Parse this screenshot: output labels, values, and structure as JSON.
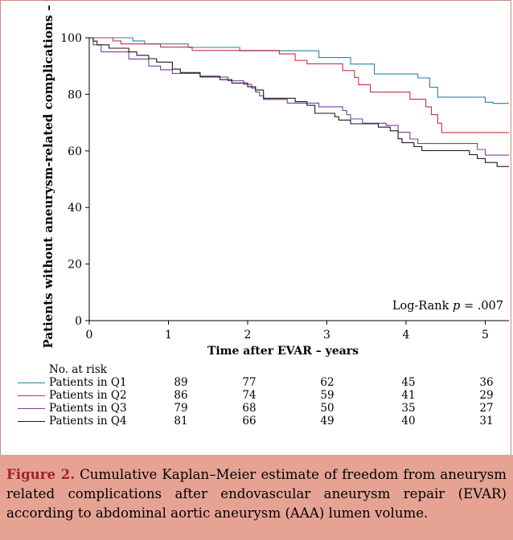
{
  "chart_data": {
    "type": "line",
    "step": true,
    "ylabel": "Patients without aneurysm-related complications – %",
    "xlabel": "Time after EVAR – years",
    "xlim": [
      0,
      5.3
    ],
    "ylim": [
      0,
      100
    ],
    "xticks": [
      0,
      1,
      2,
      3,
      4,
      5
    ],
    "yticks": [
      0,
      20,
      40,
      60,
      80,
      100
    ],
    "annotation": {
      "prefix": "Log-Rank ",
      "p": "p",
      "value": " = .007"
    },
    "series": [
      {
        "name": "Patients in Q1",
        "color": "#2f7fa8",
        "points": [
          [
            0,
            100
          ],
          [
            0.55,
            98.9
          ],
          [
            0.7,
            97.8
          ],
          [
            1.25,
            96.6
          ],
          [
            1.9,
            95.4
          ],
          [
            2.9,
            93
          ],
          [
            3.3,
            90.7
          ],
          [
            3.6,
            87.2
          ],
          [
            4.15,
            85.8
          ],
          [
            4.3,
            82.5
          ],
          [
            4.4,
            79
          ],
          [
            5.0,
            77.2
          ],
          [
            5.1,
            76.8
          ],
          [
            5.3,
            76.8
          ]
        ]
      },
      {
        "name": "Patients in Q2",
        "color": "#c8323e",
        "points": [
          [
            0,
            100
          ],
          [
            0.3,
            98.9
          ],
          [
            0.4,
            97.8
          ],
          [
            0.9,
            96.7
          ],
          [
            1.3,
            95.5
          ],
          [
            2.4,
            94.3
          ],
          [
            2.6,
            92
          ],
          [
            2.75,
            90.8
          ],
          [
            3.2,
            88.4
          ],
          [
            3.35,
            86
          ],
          [
            3.4,
            83.4
          ],
          [
            3.55,
            80.8
          ],
          [
            4.05,
            78.3
          ],
          [
            4.25,
            75.6
          ],
          [
            4.32,
            72.8
          ],
          [
            4.4,
            69.8
          ],
          [
            4.45,
            66.5
          ],
          [
            5.3,
            66.5
          ]
        ]
      },
      {
        "name": "Patients in Q3",
        "color": "#7b3f9e",
        "points": [
          [
            0,
            100
          ],
          [
            0.05,
            97.5
          ],
          [
            0.15,
            95
          ],
          [
            0.5,
            92.5
          ],
          [
            0.75,
            90
          ],
          [
            0.9,
            88.7
          ],
          [
            1.05,
            87.4
          ],
          [
            1.4,
            86.1
          ],
          [
            1.75,
            84.8
          ],
          [
            1.95,
            83.5
          ],
          [
            2.05,
            82.2
          ],
          [
            2.1,
            80.8
          ],
          [
            2.15,
            79.5
          ],
          [
            2.2,
            78.2
          ],
          [
            2.5,
            76.9
          ],
          [
            2.9,
            75.6
          ],
          [
            3.2,
            74.3
          ],
          [
            3.25,
            72.8
          ],
          [
            3.3,
            71.3
          ],
          [
            3.45,
            69.8
          ],
          [
            3.75,
            69
          ],
          [
            3.9,
            66.6
          ],
          [
            4.05,
            64.2
          ],
          [
            4.15,
            62.6
          ],
          [
            4.9,
            60.5
          ],
          [
            5.0,
            58.5
          ],
          [
            5.3,
            58.5
          ]
        ]
      },
      {
        "name": "Patients in Q4",
        "color": "#1a1a1a",
        "points": [
          [
            0,
            100
          ],
          [
            0.05,
            98.8
          ],
          [
            0.1,
            97.5
          ],
          [
            0.25,
            96.3
          ],
          [
            0.5,
            95
          ],
          [
            0.6,
            93.8
          ],
          [
            0.75,
            92.6
          ],
          [
            0.85,
            91.4
          ],
          [
            1.05,
            88.9
          ],
          [
            1.15,
            87.7
          ],
          [
            1.4,
            86.4
          ],
          [
            1.65,
            85.2
          ],
          [
            1.8,
            84
          ],
          [
            2.0,
            82.7
          ],
          [
            2.1,
            81.5
          ],
          [
            2.2,
            78.6
          ],
          [
            2.6,
            77.4
          ],
          [
            2.75,
            76.1
          ],
          [
            2.85,
            73.3
          ],
          [
            3.1,
            72.1
          ],
          [
            3.15,
            70.9
          ],
          [
            3.3,
            69.6
          ],
          [
            3.65,
            68.4
          ],
          [
            3.8,
            67.1
          ],
          [
            3.9,
            64.3
          ],
          [
            3.95,
            62.9
          ],
          [
            4.1,
            61.5
          ],
          [
            4.2,
            60.1
          ],
          [
            4.8,
            58.7
          ],
          [
            4.9,
            57.3
          ],
          [
            5.0,
            55.9
          ],
          [
            5.15,
            54.5
          ],
          [
            5.3,
            54.5
          ]
        ]
      }
    ]
  },
  "at_risk": {
    "header": "No. at risk",
    "rows": [
      {
        "name": "Patients in Q1",
        "color": "#2f7fa8",
        "counts": [
          "89",
          "77",
          "62",
          "45",
          "36"
        ]
      },
      {
        "name": "Patients in Q2",
        "color": "#c8323e",
        "counts": [
          "86",
          "74",
          "59",
          "41",
          "29"
        ]
      },
      {
        "name": "Patients in Q3",
        "color": "#7b3f9e",
        "counts": [
          "79",
          "68",
          "50",
          "35",
          "27"
        ]
      },
      {
        "name": "Patients in Q4",
        "color": "#1a1a1a",
        "counts": [
          "81",
          "66",
          "49",
          "40",
          "31"
        ]
      }
    ]
  },
  "caption": {
    "label": "Figure 2.",
    "text": " Cumulative Kaplan–Meier estimate of freedom from aneurysm related complications after endovascular aneurysm repair (EVAR) according to abdominal aortic aneurysm (AAA) lumen volume."
  }
}
